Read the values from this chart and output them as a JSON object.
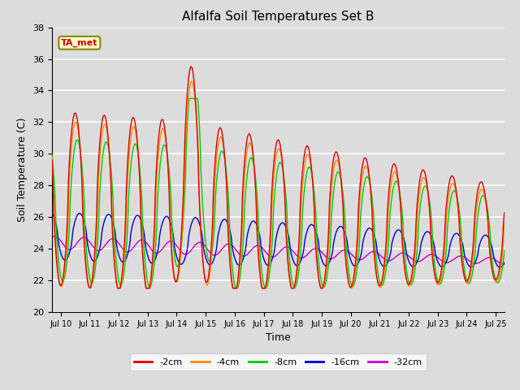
{
  "title": "Alfalfa Soil Temperatures Set B",
  "xlabel": "Time",
  "ylabel": "Soil Temperature (C)",
  "ylim": [
    20,
    38
  ],
  "yticks": [
    20,
    22,
    24,
    26,
    28,
    30,
    32,
    34,
    36,
    38
  ],
  "background_color": "#dcdcdc",
  "plot_bg_color": "#dcdcdc",
  "grid_color": "#ffffff",
  "legend_labels": [
    "-2cm",
    "-4cm",
    "-8cm",
    "-16cm",
    "-32cm"
  ],
  "line_colors": [
    "#dd0000",
    "#ff8c00",
    "#00cc00",
    "#0000dd",
    "#cc00cc"
  ],
  "annotation_text": "TA_met",
  "annotation_color": "#cc0000",
  "annotation_bg": "#ffffcc",
  "x_start_day": 9.7,
  "x_end_day": 25.3,
  "xtick_days": [
    10,
    11,
    12,
    13,
    14,
    15,
    16,
    17,
    18,
    19,
    20,
    21,
    22,
    23,
    24,
    25
  ],
  "xtick_labels": [
    "Jul 10",
    "Jul 11",
    "Jul 12",
    "Jul 13",
    "Jul 14",
    "Jul 15",
    "Jul 16",
    "Jul 17",
    "Jul 18",
    "Jul 19",
    "Jul 20",
    "Jul 21",
    "Jul 22",
    "Jul 23",
    "Jul 24",
    "Jul 25"
  ]
}
